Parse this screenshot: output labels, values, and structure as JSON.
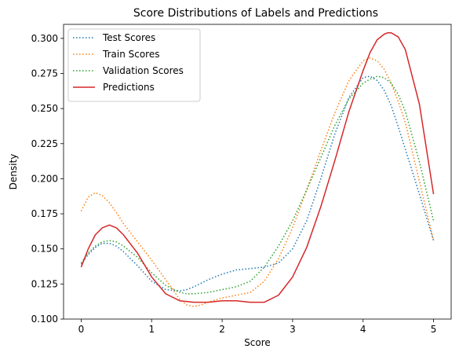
{
  "chart_data": {
    "type": "line",
    "title": "Score Distributions of Labels and Predictions",
    "xlabel": "Score",
    "ylabel": "Density",
    "xlim": [
      -0.25,
      5.25
    ],
    "ylim": [
      0.1,
      0.31
    ],
    "x_ticks": [
      0,
      1,
      2,
      3,
      4,
      5
    ],
    "y_ticks": [
      0.1,
      0.125,
      0.15,
      0.175,
      0.2,
      0.225,
      0.25,
      0.275,
      0.3
    ],
    "x_tick_labels": [
      "0",
      "1",
      "2",
      "3",
      "4",
      "5"
    ],
    "y_tick_labels": [
      "0.100",
      "0.125",
      "0.150",
      "0.175",
      "0.200",
      "0.225",
      "0.250",
      "0.275",
      "0.300"
    ],
    "grid": false,
    "legend_position": "top-left",
    "series": [
      {
        "name": "Test Scores",
        "color": "#1f77b4",
        "style": "dotted",
        "x": [
          0,
          0.1,
          0.2,
          0.3,
          0.4,
          0.5,
          0.6,
          0.8,
          1.0,
          1.2,
          1.4,
          1.5,
          1.6,
          1.8,
          2.0,
          2.2,
          2.4,
          2.6,
          2.8,
          3.0,
          3.2,
          3.4,
          3.6,
          3.8,
          4.0,
          4.1,
          4.2,
          4.3,
          4.4,
          4.5,
          4.6,
          4.8,
          5.0
        ],
        "y": [
          0.139,
          0.146,
          0.151,
          0.154,
          0.154,
          0.152,
          0.148,
          0.138,
          0.127,
          0.121,
          0.12,
          0.121,
          0.123,
          0.128,
          0.132,
          0.135,
          0.136,
          0.137,
          0.14,
          0.15,
          0.17,
          0.2,
          0.232,
          0.258,
          0.272,
          0.273,
          0.27,
          0.263,
          0.252,
          0.237,
          0.221,
          0.189,
          0.156
        ]
      },
      {
        "name": "Train Scores",
        "color": "#ff7f0e",
        "style": "dotted",
        "x": [
          0,
          0.1,
          0.2,
          0.3,
          0.4,
          0.5,
          0.6,
          0.8,
          1.0,
          1.2,
          1.4,
          1.5,
          1.6,
          1.7,
          1.8,
          2.0,
          2.2,
          2.4,
          2.6,
          2.8,
          3.0,
          3.2,
          3.4,
          3.6,
          3.8,
          4.0,
          4.1,
          4.2,
          4.3,
          4.4,
          4.5,
          4.6,
          4.8,
          5.0
        ],
        "y": [
          0.177,
          0.187,
          0.19,
          0.188,
          0.183,
          0.176,
          0.168,
          0.155,
          0.142,
          0.128,
          0.114,
          0.11,
          0.109,
          0.11,
          0.112,
          0.115,
          0.117,
          0.119,
          0.127,
          0.143,
          0.165,
          0.192,
          0.22,
          0.247,
          0.27,
          0.284,
          0.286,
          0.284,
          0.278,
          0.268,
          0.255,
          0.24,
          0.198,
          0.156
        ]
      },
      {
        "name": "Validation Scores",
        "color": "#2ca02c",
        "style": "dotted",
        "x": [
          0,
          0.1,
          0.2,
          0.3,
          0.4,
          0.5,
          0.6,
          0.8,
          1.0,
          1.2,
          1.4,
          1.5,
          1.6,
          1.8,
          2.0,
          2.2,
          2.4,
          2.6,
          2.8,
          3.0,
          3.2,
          3.4,
          3.6,
          3.8,
          4.0,
          4.1,
          4.2,
          4.3,
          4.4,
          4.5,
          4.6,
          4.8,
          5.0
        ],
        "y": [
          0.14,
          0.147,
          0.152,
          0.155,
          0.156,
          0.155,
          0.152,
          0.144,
          0.133,
          0.124,
          0.119,
          0.118,
          0.118,
          0.119,
          0.121,
          0.123,
          0.127,
          0.137,
          0.152,
          0.17,
          0.192,
          0.215,
          0.238,
          0.257,
          0.268,
          0.271,
          0.273,
          0.272,
          0.268,
          0.26,
          0.248,
          0.212,
          0.17
        ]
      },
      {
        "name": "Predictions",
        "color": "#d62728",
        "style": "solid",
        "x": [
          0,
          0.1,
          0.2,
          0.3,
          0.4,
          0.5,
          0.6,
          0.8,
          1.0,
          1.2,
          1.4,
          1.6,
          1.8,
          2.0,
          2.2,
          2.4,
          2.6,
          2.8,
          3.0,
          3.2,
          3.4,
          3.6,
          3.8,
          4.0,
          4.1,
          4.2,
          4.3,
          4.35,
          4.4,
          4.5,
          4.6,
          4.8,
          5.0
        ],
        "y": [
          0.137,
          0.15,
          0.16,
          0.165,
          0.167,
          0.165,
          0.16,
          0.147,
          0.13,
          0.118,
          0.113,
          0.112,
          0.112,
          0.113,
          0.113,
          0.112,
          0.112,
          0.117,
          0.13,
          0.151,
          0.18,
          0.213,
          0.248,
          0.277,
          0.29,
          0.299,
          0.303,
          0.304,
          0.304,
          0.301,
          0.292,
          0.253,
          0.189
        ]
      }
    ]
  }
}
